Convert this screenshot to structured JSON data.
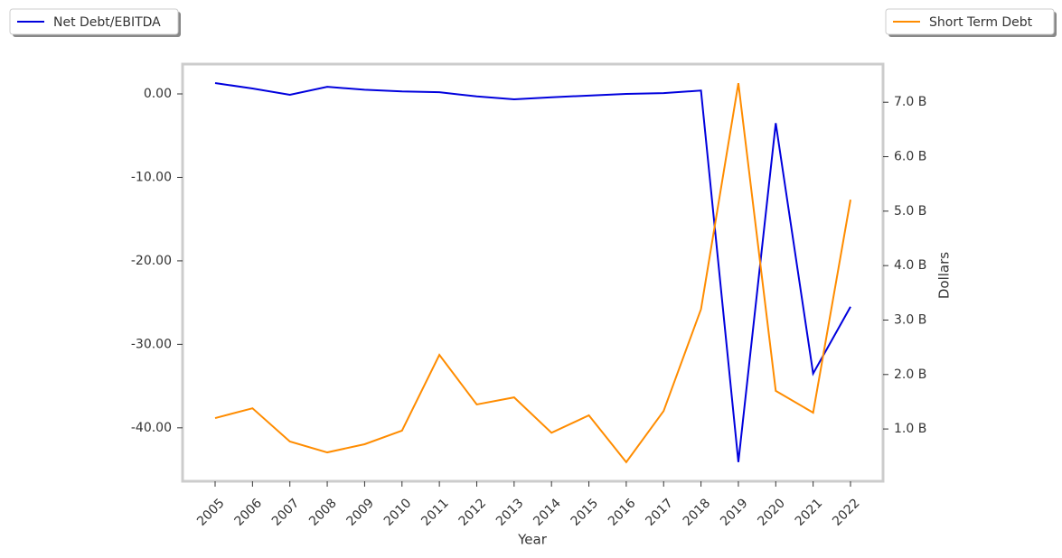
{
  "chart_data": {
    "type": "line",
    "x_label": "Year",
    "y2_label": "Dollars",
    "categories": [
      "2005",
      "2006",
      "2007",
      "2008",
      "2009",
      "2010",
      "2011",
      "2012",
      "2013",
      "2014",
      "2015",
      "2016",
      "2017",
      "2018",
      "2019",
      "2020",
      "2021",
      "2022"
    ],
    "series": [
      {
        "name": "Net Debt/EBITDA",
        "color": "#0000dd",
        "axis": "y",
        "values": [
          1.3,
          0.65,
          -0.1,
          0.85,
          0.5,
          0.3,
          0.2,
          -0.3,
          -0.65,
          -0.4,
          -0.2,
          0.0,
          0.1,
          0.4,
          -44.1,
          -3.5,
          -33.5,
          -25.5
        ]
      },
      {
        "name": "Short Term Debt",
        "color": "#ff8c00",
        "axis": "y2",
        "values": [
          1.2,
          1.38,
          0.77,
          0.57,
          0.72,
          0.97,
          2.36,
          1.45,
          1.58,
          0.93,
          1.25,
          0.39,
          1.33,
          3.2,
          7.35,
          1.7,
          1.3,
          5.21
        ]
      }
    ],
    "ylim": [
      -46.4,
      3.57
    ],
    "yticks": [
      {
        "value": 0,
        "label": "0.00"
      },
      {
        "value": -10,
        "label": "-10.00"
      },
      {
        "value": -20,
        "label": "-20.00"
      },
      {
        "value": -30,
        "label": "-30.00"
      },
      {
        "value": -40,
        "label": "-40.00"
      }
    ],
    "y2lim": [
      0.04,
      7.7
    ],
    "y2ticks": [
      {
        "value": 7,
        "label": "7.0 B"
      },
      {
        "value": 6,
        "label": "6.0 B"
      },
      {
        "value": 5,
        "label": "5.0 B"
      },
      {
        "value": 4,
        "label": "4.0 B"
      },
      {
        "value": 3,
        "label": "3.0 B"
      },
      {
        "value": 2,
        "label": "2.0 B"
      },
      {
        "value": 1,
        "label": "1.0 B"
      }
    ],
    "grid": false,
    "legend": [
      "upper left",
      "upper right"
    ]
  }
}
